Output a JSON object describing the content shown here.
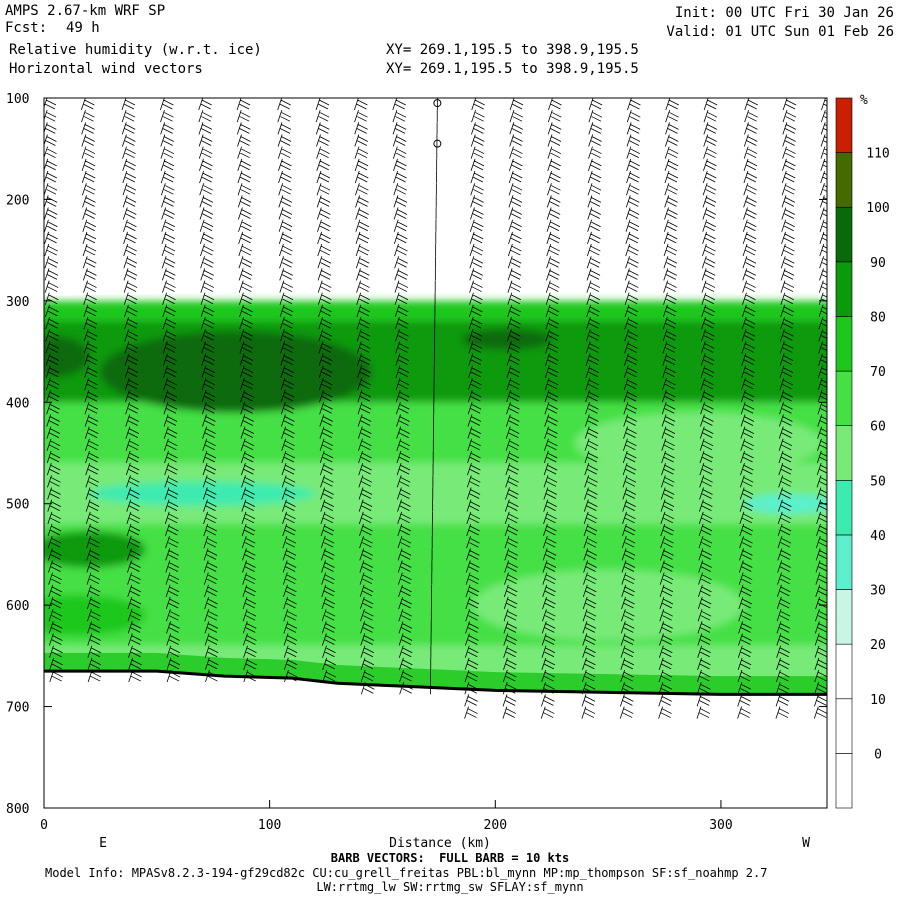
{
  "header": {
    "model": "AMPS 2.67-km WRF SP",
    "fcst_label": "Fcst:",
    "fcst_value": "49 h",
    "field1": "Relative humidity (w.r.t. ice)",
    "field2": "Horizontal wind vectors",
    "xy1": "XY= 269.1,195.5 to 398.9,195.5",
    "xy2": "XY= 269.1,195.5 to 398.9,195.5",
    "init": "Init: 00 UTC Fri 30 Jan 26",
    "valid": "Valid: 01 UTC Sun 01 Feb 26"
  },
  "footer": {
    "barb_note": "BARB VECTORS:  FULL BARB = 10 kts",
    "model_info": "Model Info: MPASv8.2.3-194-gf29cd82c CU:cu_grell_freitas PBL:bl_mynn MP:mp_thompson SF:sf_noahmp 2.7",
    "model_info2": "LW:rrtmg_lw SW:rrtmg_sw SFLAY:sf_mynn"
  },
  "chart_data": {
    "type": "heatmap",
    "title": "Relative humidity (w.r.t. ice)",
    "xlabel": "Distance (km)",
    "ylabel": "",
    "xlim": [
      0,
      347
    ],
    "ylim": [
      800,
      100
    ],
    "x_ticks": [
      0,
      100,
      200,
      300
    ],
    "y_ticks": [
      100,
      200,
      300,
      400,
      500,
      600,
      700,
      800
    ],
    "direction_labels": {
      "left": "E",
      "right": "W"
    },
    "colorbar": {
      "unit": "%",
      "levels": [
        0,
        10,
        20,
        30,
        40,
        50,
        60,
        70,
        80,
        90,
        100,
        110
      ],
      "colors": [
        "#ffffff",
        "#ffffff",
        "#ffffff",
        "#c8f5e4",
        "#5cf0cc",
        "#3cebb0",
        "#78ea78",
        "#44e044",
        "#1cc81c",
        "#0a9a0a",
        "#0a6a0a",
        "#446a00",
        "#c82000"
      ]
    },
    "terrain_pressure": [
      {
        "x": 0,
        "p": 665
      },
      {
        "x": 50,
        "p": 665
      },
      {
        "x": 80,
        "p": 670
      },
      {
        "x": 110,
        "p": 672
      },
      {
        "x": 130,
        "p": 677
      },
      {
        "x": 160,
        "p": 680
      },
      {
        "x": 180,
        "p": 682
      },
      {
        "x": 200,
        "p": 684
      },
      {
        "x": 250,
        "p": 686
      },
      {
        "x": 300,
        "p": 688
      },
      {
        "x": 347,
        "p": 688
      }
    ],
    "rh_top_pressure": [
      {
        "x": 0,
        "p": 295
      },
      {
        "x": 50,
        "p": 293
      },
      {
        "x": 100,
        "p": 290
      },
      {
        "x": 150,
        "p": 285
      },
      {
        "x": 200,
        "p": 283
      },
      {
        "x": 250,
        "p": 280
      },
      {
        "x": 300,
        "p": 277
      },
      {
        "x": 347,
        "p": 275
      }
    ],
    "rh_layers": [
      {
        "p_top": 300,
        "p_bot": 320,
        "rh": 75
      },
      {
        "p_top": 320,
        "p_bot": 400,
        "rh": 85
      },
      {
        "p_top": 400,
        "p_bot": 460,
        "rh": 68
      },
      {
        "p_top": 460,
        "p_bot": 520,
        "rh": 52
      },
      {
        "p_top": 520,
        "p_bot": 580,
        "rh": 64
      },
      {
        "p_top": 580,
        "p_bot": 640,
        "rh": 60
      },
      {
        "p_top": 640,
        "p_bot": 700,
        "rh": 58
      }
    ],
    "rh_patches": [
      {
        "x": 100,
        "p": 360,
        "rx": 22,
        "rp": 18,
        "rh": 95
      },
      {
        "x": 85,
        "p": 370,
        "rx": 60,
        "rp": 40,
        "rh": 90
      },
      {
        "x": 5,
        "p": 355,
        "rx": 15,
        "rp": 20,
        "rh": 95
      },
      {
        "x": 205,
        "p": 338,
        "rx": 20,
        "rp": 10,
        "rh": 90
      },
      {
        "x": 290,
        "p": 440,
        "rx": 55,
        "rp": 30,
        "rh": 55
      },
      {
        "x": 330,
        "p": 500,
        "rx": 20,
        "rp": 10,
        "rh": 35
      },
      {
        "x": 20,
        "p": 545,
        "rx": 25,
        "rp": 18,
        "rh": 80
      },
      {
        "x": 15,
        "p": 610,
        "rx": 30,
        "rp": 20,
        "rh": 78
      },
      {
        "x": 70,
        "p": 490,
        "rx": 50,
        "rp": 12,
        "rh": 45
      },
      {
        "x": 250,
        "p": 600,
        "rx": 60,
        "rp": 35,
        "rh": 50
      }
    ],
    "barb_x": [
      0,
      17,
      35,
      52,
      69,
      86,
      104,
      121,
      138,
      155,
      173,
      190,
      207,
      224,
      242,
      259,
      276,
      293,
      311,
      328,
      345
    ]
  }
}
